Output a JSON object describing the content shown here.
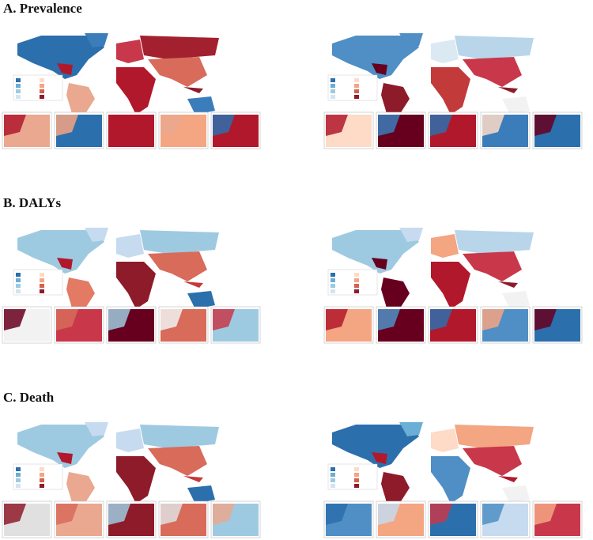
{
  "panels": [
    {
      "title": "A. Prevalence"
    },
    {
      "title": "B. DALYs"
    },
    {
      "title": "C. Death"
    }
  ]
}
